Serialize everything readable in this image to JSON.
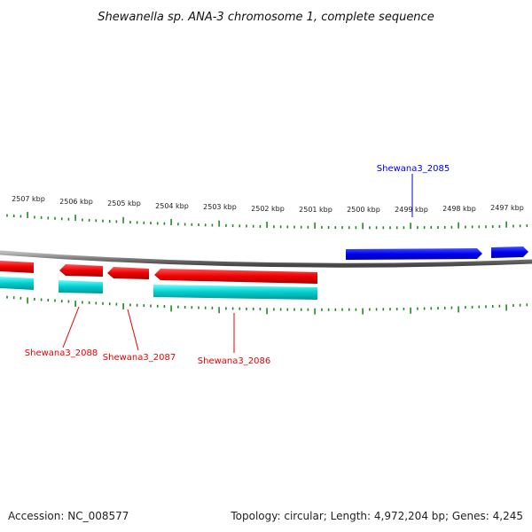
{
  "title": "Shewanella sp. ANA-3 chromosome 1, complete sequence",
  "ruler_labels": [
    "2507 kbp",
    "2506 kbp",
    "2505 kbp",
    "2504 kbp",
    "2503 kbp",
    "2502 kbp",
    "2501 kbp",
    "2500 kbp",
    "2499 kbp",
    "2498 kbp",
    "2497 kbp"
  ],
  "genes": [
    {
      "label": "Shewana3_2085",
      "strand": "forward",
      "color": "#0000ee"
    },
    {
      "label": "Shewana3_2086",
      "strand": "reverse",
      "color": "#ee0000"
    },
    {
      "label": "Shewana3_2087",
      "strand": "reverse",
      "color": "#ee0000"
    },
    {
      "label": "Shewana3_2088",
      "strand": "reverse",
      "color": "#ee0000"
    }
  ],
  "colors": {
    "forward_cds": "#0000ee",
    "reverse_cds": "#ee0000",
    "rna_track": "#00cccc",
    "ticks": "#228822",
    "backbone": "#888888"
  },
  "footer": {
    "accession": "Accession: NC_008577",
    "stats": "Topology: circular; Length: 4,972,204 bp; Genes: 4,245"
  }
}
